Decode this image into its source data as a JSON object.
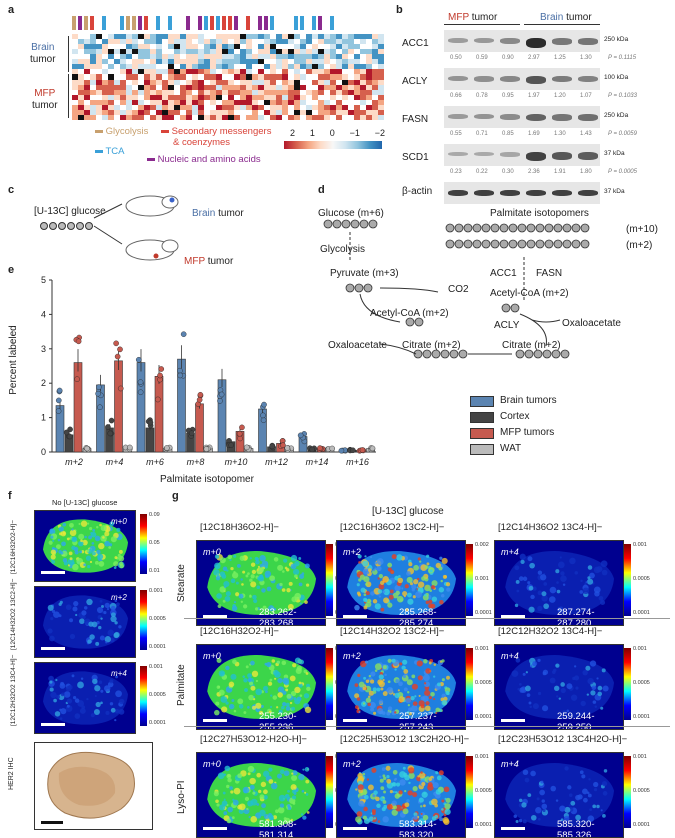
{
  "panels": {
    "a": "a",
    "b": "b",
    "c": "c",
    "d": "d",
    "e": "e",
    "f": "f",
    "g": "g"
  },
  "panel_a": {
    "row_labels": {
      "brain_1": "Brain",
      "brain_2": "tumor",
      "mfp_1": "MFP",
      "mfp_2": "tumor"
    },
    "legend": [
      "Glycolysis",
      "Secondary messengers",
      "& coenzymes",
      "TCA",
      "Nucleic and amino acids"
    ],
    "scale_ticks": [
      "2",
      "1",
      "0",
      "−1",
      "−2"
    ],
    "colors": {
      "glycolysis": "#c8a06e",
      "secondary": "#d9443a",
      "tca": "#3aa0d8",
      "nucleic": "#8a2a8e",
      "brain": "#4a6fa5",
      "mfp": "#c0392b"
    }
  },
  "panel_b": {
    "group_labels": {
      "mfp_1": "MFP",
      "mfp_2": " tumor",
      "brain_1": "Brain",
      "brain_2": " tumor"
    },
    "proteins": [
      {
        "name": "ACC1",
        "kda": "250 kDa",
        "values": [
          "0.50",
          "0.59",
          "0.90",
          "2.97",
          "1.25",
          "1.30"
        ],
        "p": "P = 0.1115"
      },
      {
        "name": "ACLY",
        "kda": "100 kDa",
        "values": [
          "0.66",
          "0.78",
          "0.95",
          "1.97",
          "1.20",
          "1.07"
        ],
        "p": "P = 0.1033"
      },
      {
        "name": "FASN",
        "kda": "250 kDa",
        "values": [
          "0.55",
          "0.71",
          "0.85",
          "1.69",
          "1.30",
          "1.43"
        ],
        "p": "P = 0.0059"
      },
      {
        "name": "SCD1",
        "kda": "37 kDa",
        "values": [
          "0.23",
          "0.22",
          "0.30",
          "2.36",
          "1.91",
          "1.80"
        ],
        "p": "P = 0.0005"
      }
    ],
    "actin": {
      "name": "β-actin",
      "kda": "37 kDa"
    }
  },
  "panel_c": {
    "glucose": "[U-13C] glucose",
    "brain": "Brain",
    "brain_t": " tumor",
    "mfp": "MFP",
    "mfp_t": " tumor"
  },
  "panel_d": {
    "glucose": "Glucose (m+6)",
    "glycolysis": "Glycolysis",
    "pyruvate": "Pyruvate (m+3)",
    "co2": "CO2",
    "acetyl1": "Acetyl-CoA (m+2)",
    "oxaloacetate": "Oxaloacetate",
    "citrate1": "Citrate (m+2)",
    "citrate2": "Citrate (m+2)",
    "acly": "ACLY",
    "oxaloacetate2": "Oxaloacetate",
    "acetyl2": "Acetyl-CoA (m+2)",
    "acc1": "ACC1",
    "fasn": "FASN",
    "palm_title": "Palmitate isotopomers",
    "m10": "(m+10)",
    "m2": "(m+2)"
  },
  "chart_data": {
    "type": "bar",
    "ylabel": "Percent labeled",
    "xlabel": "Palmitate isotopomer",
    "ylim": [
      0,
      5
    ],
    "yticks": [
      "0",
      "1",
      "2",
      "3",
      "4",
      "5"
    ],
    "categories": [
      "m+2",
      "m+4",
      "m+6",
      "m+8",
      "m+10",
      "m+12",
      "m+14",
      "m+16"
    ],
    "series": [
      {
        "name": "Brain tumors",
        "color": "#5b84b1",
        "values": [
          1.35,
          1.95,
          2.6,
          2.7,
          2.1,
          1.25,
          0.45,
          0.05
        ]
      },
      {
        "name": "Cortex",
        "color": "#444444",
        "values": [
          0.5,
          0.7,
          0.7,
          0.55,
          0.3,
          0.15,
          0.1,
          0.05
        ]
      },
      {
        "name": "MFP tumors",
        "color": "#c65a4f",
        "values": [
          2.6,
          2.65,
          2.2,
          1.4,
          0.6,
          0.25,
          0.1,
          0.05
        ]
      },
      {
        "name": "WAT",
        "color": "#bbbbbb",
        "values": [
          0.1,
          0.1,
          0.1,
          0.1,
          0.1,
          0.1,
          0.1,
          0.1
        ]
      }
    ]
  },
  "panel_f": {
    "title": "No [U-13C] glucose",
    "rows": [
      {
        "label": "[12C16H32O2-H]−",
        "tag": "m+0",
        "ticks": [
          "0.09",
          "0.05",
          "0.01"
        ]
      },
      {
        "label": "[12C14H32O2 13C2-H]−",
        "tag": "m+2",
        "ticks": [
          "0.001",
          "0.0005",
          "0.0001"
        ]
      },
      {
        "label": "[12C12H32O2 13C4-H]−",
        "tag": "m+4",
        "ticks": [
          "0.001",
          "0.0005",
          "0.0001"
        ]
      }
    ],
    "ihc": "HER2 IHC"
  },
  "panel_g": {
    "title": "[U-13C] glucose",
    "rows": [
      {
        "name": "Stearate",
        "cells": [
          {
            "formula": "[12C18H36O2-H]−",
            "tag": "m+0",
            "mz": "283.262-283.268",
            "ticks": [
              "0.1",
              "0.05",
              "0.01"
            ]
          },
          {
            "formula": "[12C16H36O2 13C2-H]−",
            "tag": "m+2",
            "mz": "285.268-285.274",
            "ticks": [
              "0.002",
              "0.001",
              "0.0001"
            ]
          },
          {
            "formula": "[12C14H36O2 13C4-H]−",
            "tag": "m+4",
            "mz": "287.274-287.280",
            "ticks": [
              "0.001",
              "0.0005",
              "0.0001"
            ]
          }
        ]
      },
      {
        "name": "Palmitate",
        "cells": [
          {
            "formula": "[12C16H32O2-H]−",
            "tag": "m+0",
            "mz": "255.230-255.236",
            "ticks": [
              "0.09",
              "0.05",
              "0.01"
            ]
          },
          {
            "formula": "[12C14H32O2 13C2-H]−",
            "tag": "m+2",
            "mz": "257.237-257.243",
            "ticks": [
              "0.001",
              "0.0005",
              "0.0001"
            ]
          },
          {
            "formula": "[12C12H32O2 13C4-H]−",
            "tag": "m+4",
            "mz": "259.244-259.250",
            "ticks": [
              "0.001",
              "0.0005",
              "0.0001"
            ]
          }
        ]
      },
      {
        "name": "Lyso-PI",
        "cells": [
          {
            "formula": "[12C27H53O12-H2O-H]−",
            "tag": "m+0",
            "mz": "581.308-581.314",
            "ticks": [
              "0.009",
              "0.005",
              "0.001"
            ]
          },
          {
            "formula": "[12C25H53O12 13C2H2O-H]−",
            "tag": "m+2",
            "mz": "583.314-583.320",
            "ticks": [
              "0.001",
              "0.0005",
              "0.0001"
            ]
          },
          {
            "formula": "[12C23H53O12 13C4H2O-H]−",
            "tag": "m+4",
            "mz": "585.320-585.326",
            "ticks": [
              "0.001",
              "0.0005",
              "0.0001"
            ]
          }
        ]
      }
    ]
  }
}
